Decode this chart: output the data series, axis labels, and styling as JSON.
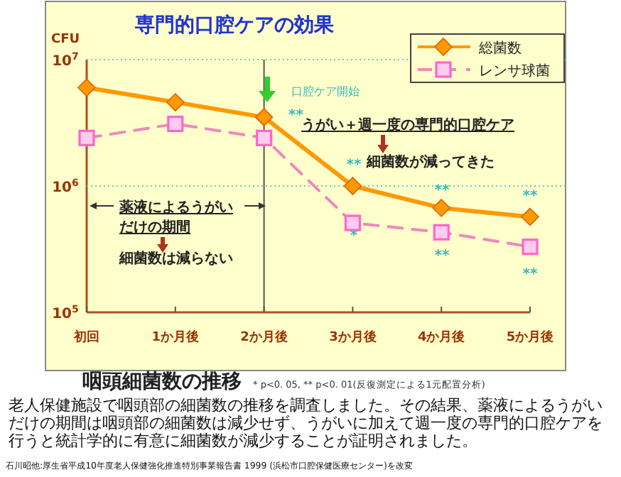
{
  "chart_data": {
    "type": "line",
    "title": "専門的口腔ケアの効果",
    "ylabel": "CFU",
    "categories": [
      "初回",
      "1か月後",
      "2か月後",
      "3か月後",
      "4か月後",
      "5か月後"
    ],
    "series": [
      {
        "name": "総菌数",
        "color": "#ff9900",
        "marker": "diamond",
        "line_style": "solid",
        "values": [
          6000000,
          4600000,
          3500000,
          1000000,
          670000,
          570000
        ]
      },
      {
        "name": "レンサ球菌",
        "color": "#ff66cc",
        "marker": "square",
        "line_style": "dashed",
        "values": [
          2400000,
          3100000,
          2400000,
          510000,
          430000,
          330000
        ]
      }
    ],
    "log": "y",
    "ylim": [
      100000,
      10000000
    ],
    "yticks": [
      {
        "value": 100000,
        "label": "10$^{5}$"
      },
      {
        "value": 1000000,
        "label": "10$^{6}$"
      },
      {
        "value": 10000000,
        "label": "10$^{7}$"
      }
    ],
    "legend": "top right",
    "ref_lines": [
      {
        "axis": "x",
        "value": "2か月後",
        "color": "#555555"
      },
      {
        "axis": "y",
        "value": 10000000,
        "color": "#66cccc",
        "line_style": "dotted"
      },
      {
        "axis": "y",
        "value": 1000000,
        "color": "#66cccc",
        "line_style": "dotted"
      }
    ],
    "annotations": [
      "口腔ケア開始",
      "うがい＋週一度の専門的口腔ケア",
      "細菌数が減ってきた",
      "薬液によるうがい",
      "だけの期間",
      "細菌数は減らない",
      "咽頭細菌数の推移",
      "* p<0. 05, ** p<0. 01(反復測定による1元配置分析)",
      "老人保健施設で咽頭部の細菌数の推移を調査しました。その結果、薬液によるうがいだけの期間は咽頭部の細菌数は減少せず、うがいに加えて週一度の専門的口腔ケアを行うと統計学的に有意に細菌数が減少することが証明されました。",
      "石川昭他:厚生省平成10年度老人保健強化推進特別事業報告書 1999 (浜松市口腔保健医療センター)を改変",
      "**",
      "**",
      "**",
      "**",
      "*",
      "**",
      "**"
    ]
  }
}
